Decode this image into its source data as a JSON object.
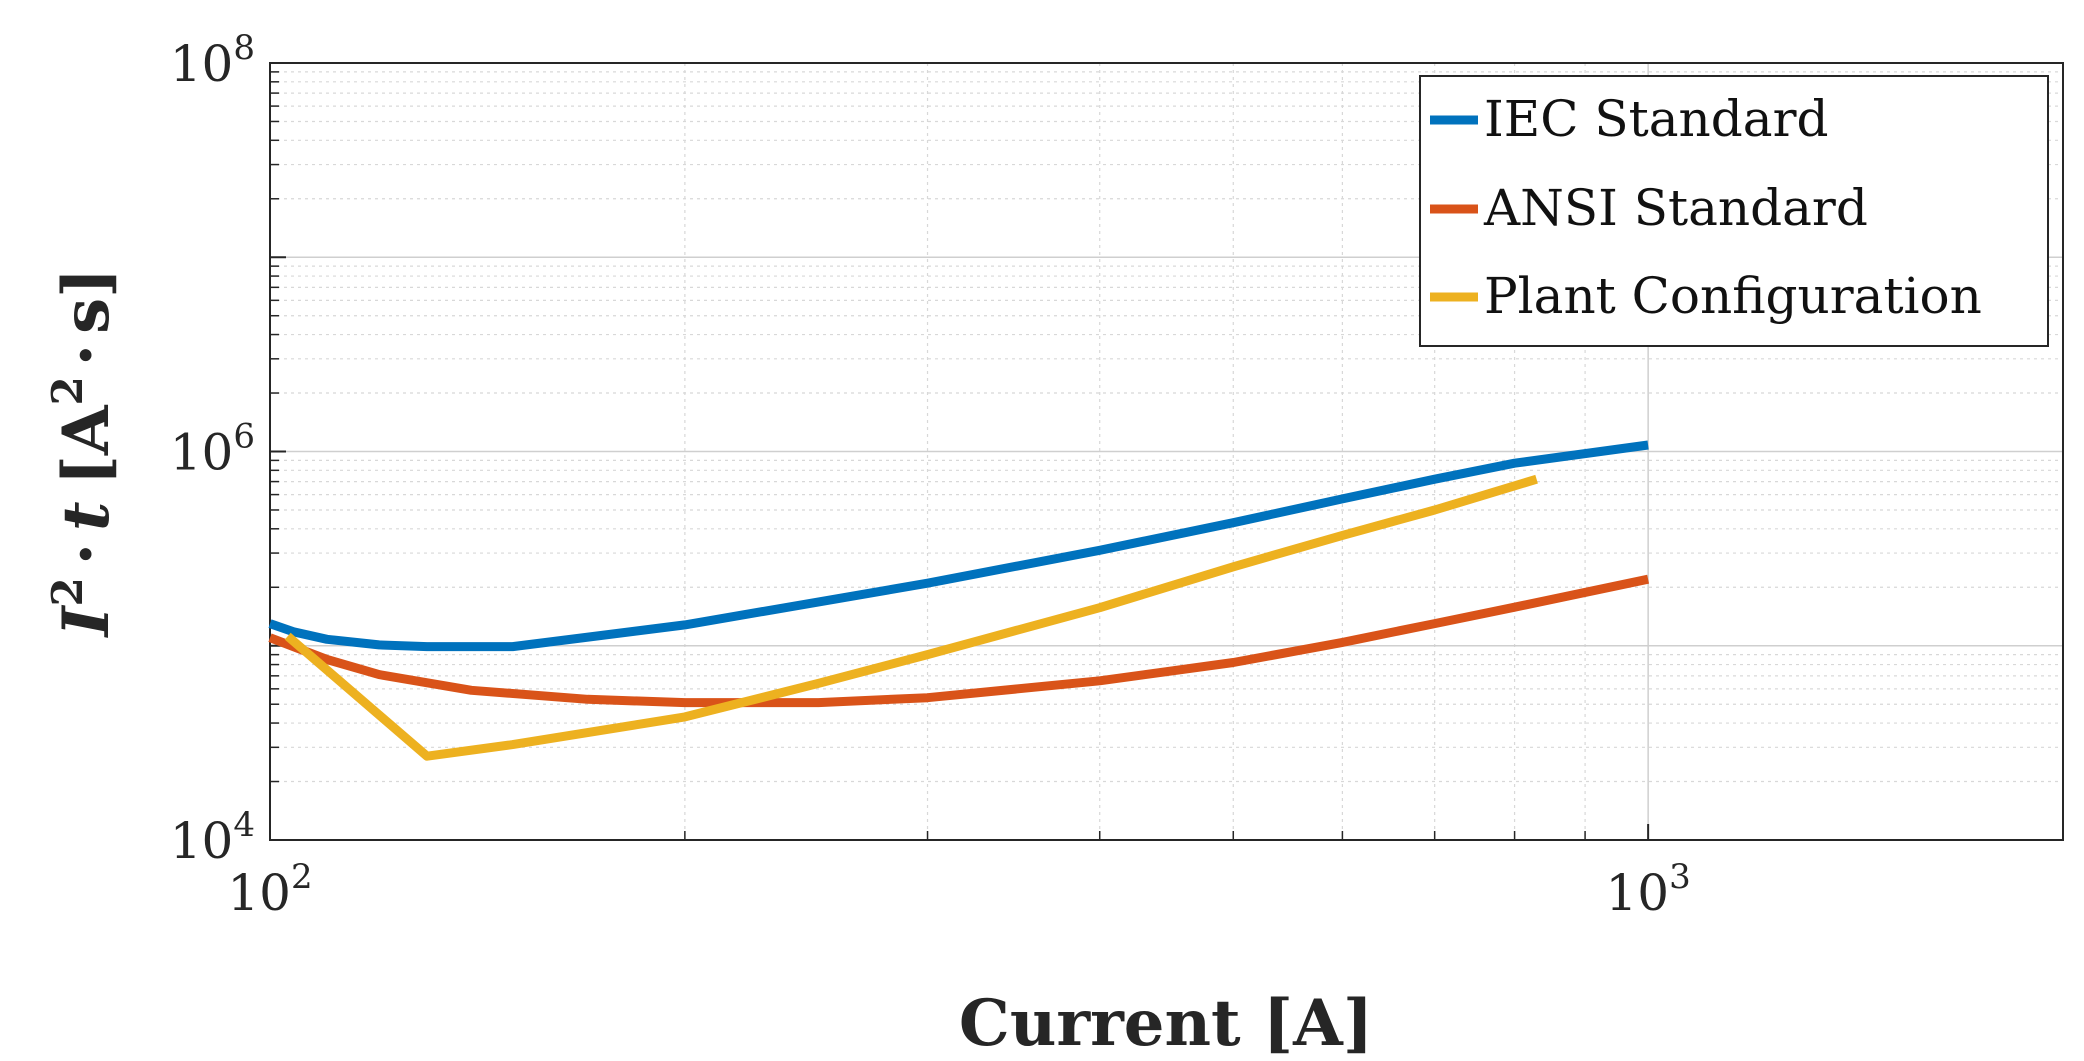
{
  "chart_data": {
    "type": "line",
    "xscale": "log",
    "yscale": "log",
    "xlim": [
      100,
      2000
    ],
    "ylim": [
      10000,
      100000000
    ],
    "grid": true,
    "minor_grid": true,
    "legend_placement": "top-right",
    "xlabel": "Current [A]",
    "ylabel": {
      "base": "I",
      "exp": "2",
      "dot": "·",
      "var": "t",
      "unit_open": "[A",
      "unit_exp": "2",
      "unit_dot": "·",
      "unit_close": "s]"
    },
    "xticks": [
      {
        "value": 100,
        "base": "10",
        "exp": "2"
      },
      {
        "value": 1000,
        "base": "10",
        "exp": "3"
      }
    ],
    "yticks": [
      {
        "value": 10000,
        "base": "10",
        "exp": "4"
      },
      {
        "value": 1000000,
        "base": "10",
        "exp": "6"
      },
      {
        "value": 100000000,
        "base": "10",
        "exp": "8"
      }
    ],
    "series": [
      {
        "name": "IEC Standard",
        "color": "#0072BD",
        "x": [
          100,
          104,
          110,
          120,
          130,
          150,
          200,
          300,
          400,
          500,
          600,
          700,
          800,
          1000
        ],
        "y": [
          130000,
          118000,
          108000,
          101000,
          99000,
          99000,
          128000,
          210000,
          310000,
          430000,
          570000,
          720000,
          870000,
          1080000
        ]
      },
      {
        "name": "ANSI Standard",
        "color": "#D95319",
        "x": [
          100,
          110,
          120,
          140,
          170,
          200,
          250,
          300,
          400,
          500,
          600,
          700,
          800,
          1000
        ],
        "y": [
          110000,
          85000,
          71000,
          59000,
          53000,
          51000,
          51000,
          54000,
          66000,
          82000,
          104000,
          130000,
          158000,
          220000
        ]
      },
      {
        "name": "Plant Configuration",
        "color": "#EDB120",
        "x": [
          103,
          130,
          150,
          200,
          250,
          300,
          400,
          500,
          600,
          700,
          830
        ],
        "y": [
          112000,
          27000,
          31000,
          43000,
          64000,
          90000,
          157000,
          255000,
          370000,
          500000,
          720000
        ]
      }
    ]
  }
}
